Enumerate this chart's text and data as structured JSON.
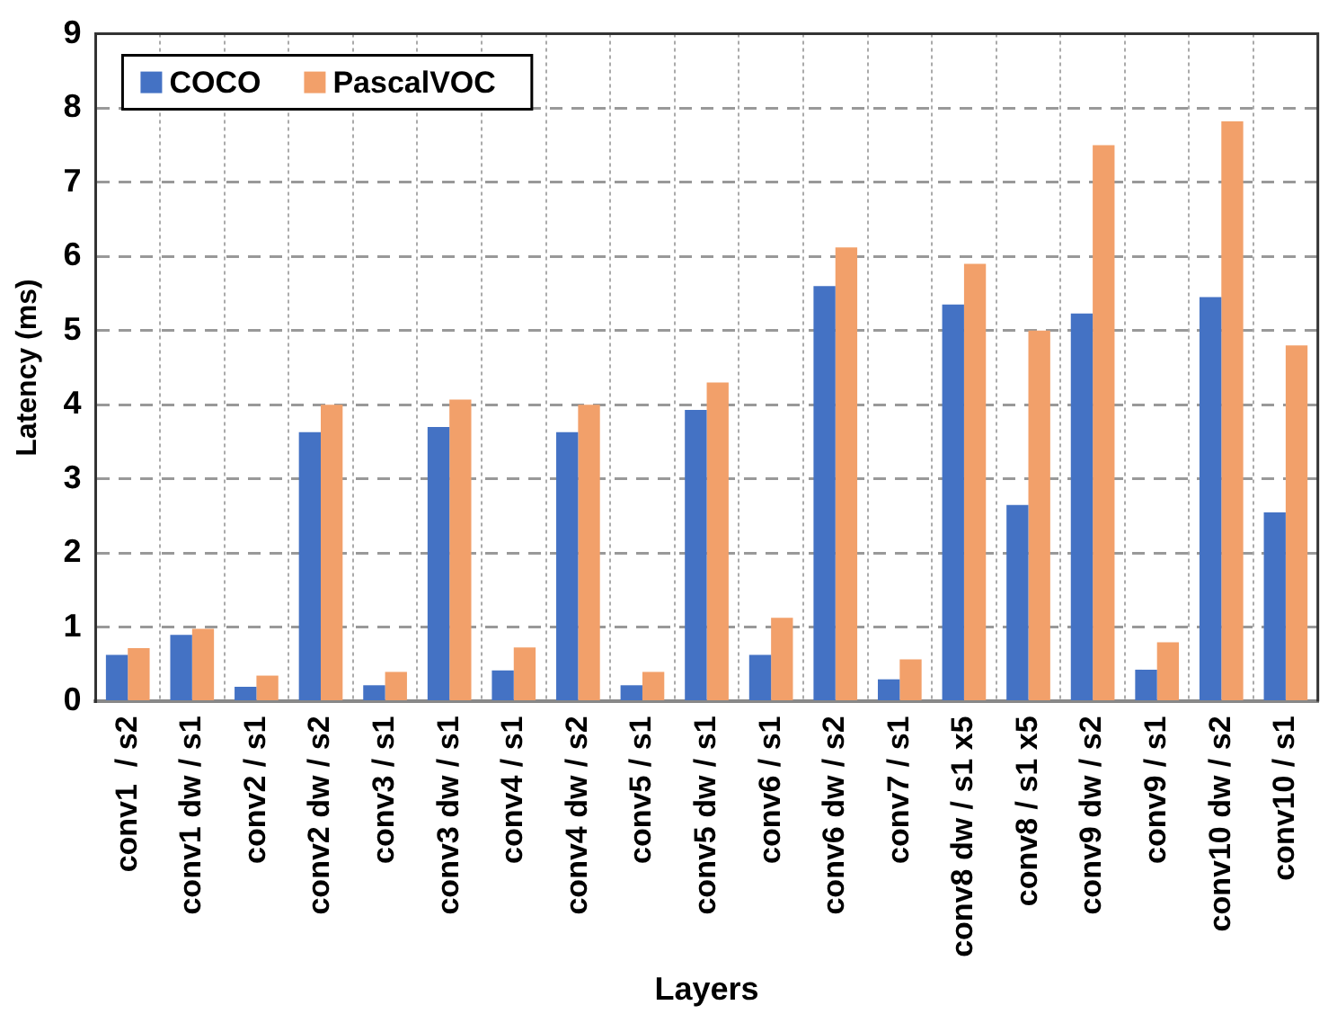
{
  "chart_data": {
    "type": "bar",
    "xlabel": "Layers",
    "ylabel": "Latency (ms)",
    "categories": [
      "conv1  / s2",
      "conv1 dw / s1",
      "conv2 / s1",
      "conv2 dw / s2",
      "conv3 / s1",
      "conv3 dw / s1",
      "conv4 / s1",
      "conv4 dw / s2",
      "conv5 / s1",
      "conv5 dw / s1",
      "conv6 / s1",
      "conv6 dw / s2",
      "conv7 / s1",
      "conv8 dw / s1 x5",
      "conv8 / s1 x5",
      "conv9 dw / s2",
      "conv9 / s1",
      "conv10 dw / s2",
      "conv10 / s1"
    ],
    "series": [
      {
        "name": "COCO",
        "color": "#4472c4",
        "values": [
          0.63,
          0.9,
          0.2,
          3.63,
          0.22,
          3.7,
          0.42,
          3.63,
          0.22,
          3.93,
          0.63,
          5.6,
          0.3,
          5.35,
          2.65,
          5.23,
          0.43,
          5.45,
          2.55
        ]
      },
      {
        "name": "PascalVOC",
        "color": "#f2a06a",
        "values": [
          0.72,
          0.98,
          0.35,
          4.0,
          0.4,
          4.07,
          0.73,
          4.0,
          0.4,
          4.3,
          1.13,
          6.12,
          0.57,
          5.9,
          5.0,
          7.5,
          0.8,
          7.82,
          4.8
        ]
      }
    ],
    "ylim": [
      0,
      9
    ],
    "yticks": [
      0,
      1,
      2,
      3,
      4,
      5,
      6,
      7,
      8,
      9
    ],
    "grid": true,
    "legend": "top left"
  }
}
